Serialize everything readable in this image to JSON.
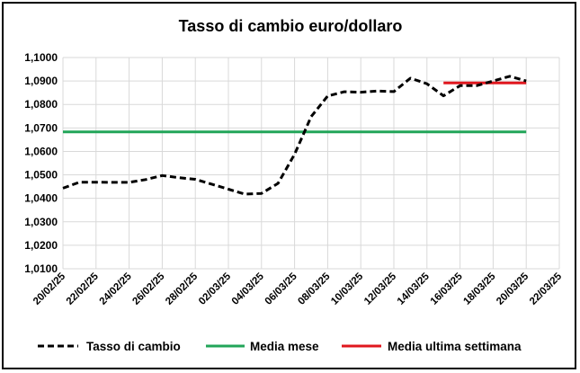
{
  "chart_data": {
    "type": "line",
    "title": "Tasso di cambio euro/dollaro",
    "xlabel": "",
    "ylabel": "",
    "ylim": [
      1.01,
      1.1
    ],
    "yticks": [
      "1,0100",
      "1,0200",
      "1,0300",
      "1,0400",
      "1,0500",
      "1,0600",
      "1,0700",
      "1,0800",
      "1,0900",
      "1,1000"
    ],
    "xticks": [
      "20/02/25",
      "22/02/25",
      "24/02/25",
      "26/02/25",
      "28/02/25",
      "02/03/25",
      "04/03/25",
      "06/03/25",
      "08/03/25",
      "10/03/25",
      "12/03/25",
      "14/03/25",
      "16/03/25",
      "18/03/25",
      "20/03/25",
      "22/03/25"
    ],
    "x_start": "2025-02-20",
    "x_end": "2025-03-22",
    "grid": true,
    "legend_position": "bottom",
    "series": [
      {
        "name": "Tasso di cambio",
        "style": "dashed",
        "color": "#000000",
        "x": [
          "2025-02-20",
          "2025-02-21",
          "2025-02-24",
          "2025-02-25",
          "2025-02-26",
          "2025-02-27",
          "2025-02-28",
          "2025-03-03",
          "2025-03-04",
          "2025-03-05",
          "2025-03-06",
          "2025-03-07",
          "2025-03-08",
          "2025-03-09",
          "2025-03-10",
          "2025-03-11",
          "2025-03-12",
          "2025-03-13",
          "2025-03-14",
          "2025-03-15",
          "2025-03-16",
          "2025-03-17",
          "2025-03-18",
          "2025-03-19",
          "2025-03-20"
        ],
        "values": [
          1.0443,
          1.0469,
          1.0468,
          1.048,
          1.0497,
          1.0488,
          1.0481,
          1.0418,
          1.0421,
          1.0464,
          1.0588,
          1.0748,
          1.0836,
          1.0854,
          1.0852,
          1.0857,
          1.0855,
          1.0912,
          1.0888,
          1.0837,
          1.088,
          1.088,
          1.09,
          1.092,
          1.09
        ]
      },
      {
        "name": "Media mese",
        "style": "solid",
        "color": "#22a559",
        "x": [
          "2025-02-20",
          "2025-03-20"
        ],
        "values": [
          1.0683,
          1.0683
        ]
      },
      {
        "name": "Media ultima settimana",
        "style": "solid",
        "color": "#e0171e",
        "x": [
          "2025-03-15",
          "2025-03-20"
        ],
        "values": [
          1.0892,
          1.0892
        ]
      }
    ]
  }
}
